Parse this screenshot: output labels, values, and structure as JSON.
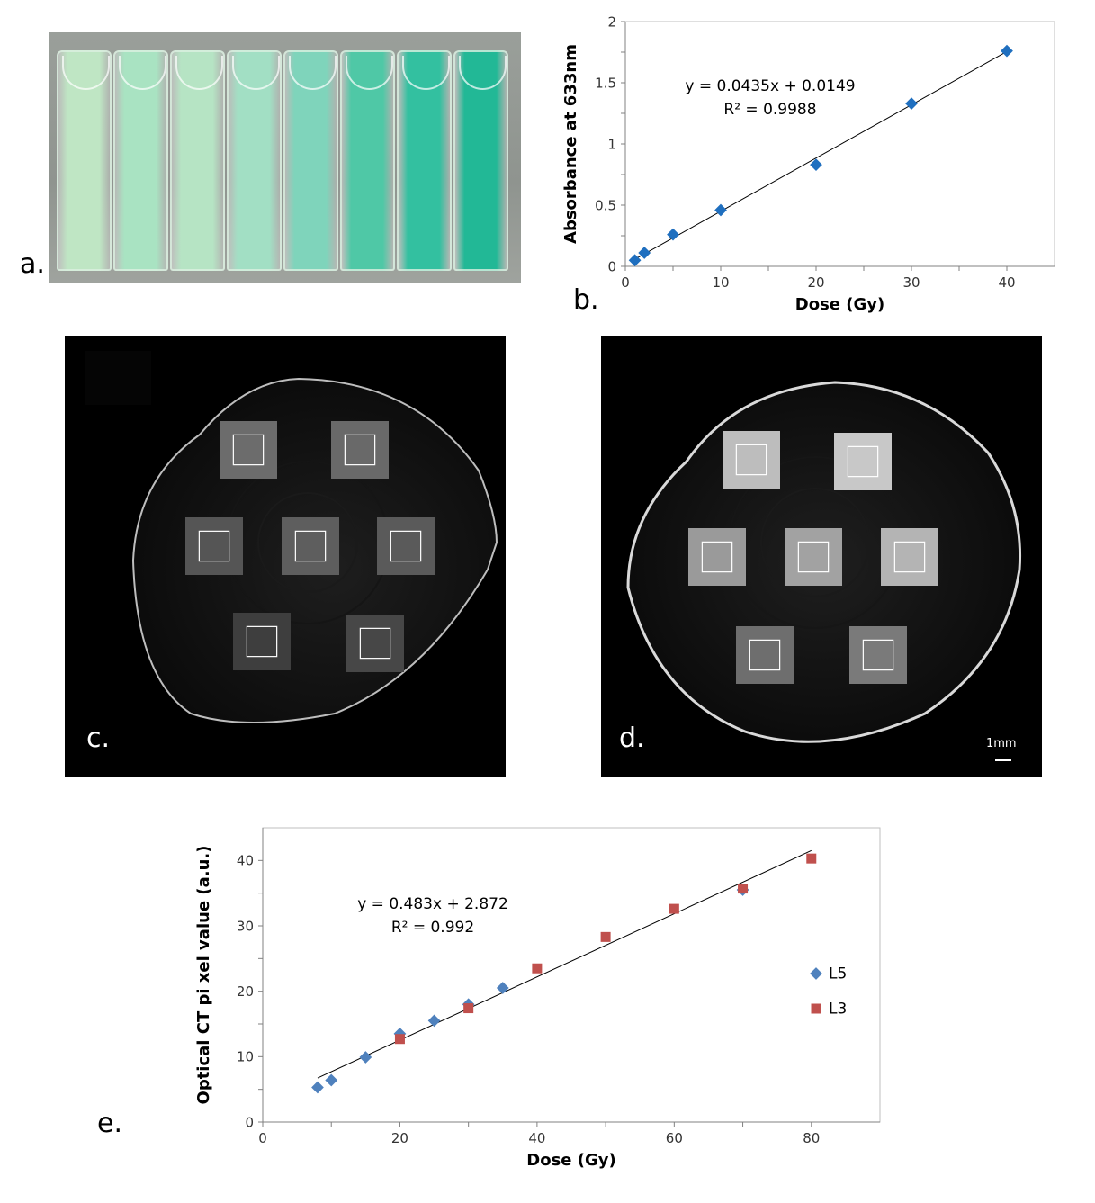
{
  "panels": {
    "a": {
      "label": "a."
    },
    "b": {
      "label": "b."
    },
    "c": {
      "label": "c."
    },
    "d": {
      "label": "d.",
      "scale_bar": "1mm"
    },
    "e": {
      "label": "e."
    }
  },
  "cuvettes": {
    "count": 8,
    "colors": [
      "#bfe6c4",
      "#a9e3c2",
      "#b6e4c4",
      "#a2dfc4",
      "#7fd4bb",
      "#4fc8a6",
      "#33c0a0",
      "#22b896"
    ]
  },
  "chart_data": [
    {
      "id": "b",
      "type": "scatter",
      "xlabel": "Dose (Gy)",
      "ylabel": "Absorbance at 633nm",
      "xlim": [
        0,
        45
      ],
      "ylim": [
        0,
        2
      ],
      "xticks": [
        "0",
        "10",
        "20",
        "30",
        "40"
      ],
      "yticks": [
        "0",
        "0.5",
        "1",
        "1.5",
        "2"
      ],
      "grid": false,
      "marker_color": "#1f6fbf",
      "series": [
        {
          "values": [
            [
              1,
              0.05
            ],
            [
              2,
              0.11
            ],
            [
              5,
              0.26
            ],
            [
              10,
              0.46
            ],
            [
              20,
              0.83
            ],
            [
              30,
              1.33
            ],
            [
              40,
              1.76
            ]
          ]
        }
      ],
      "trendline": {
        "slope": 0.0435,
        "intercept": 0.0149,
        "x_range": [
          1,
          40
        ]
      },
      "annotations": {
        "equation": "y = 0.0435x + 0.0149",
        "r2": "R² = 0.9988"
      }
    },
    {
      "id": "e",
      "type": "scatter",
      "xlabel": "Dose (Gy)",
      "ylabel": "Optical CT pi xel value (a.u.)",
      "xlim": [
        0,
        90
      ],
      "ylim": [
        0,
        45
      ],
      "xticks": [
        "0",
        "20",
        "40",
        "60",
        "80"
      ],
      "yticks": [
        "0",
        "10",
        "20",
        "30",
        "40"
      ],
      "grid": false,
      "legend_position": "right",
      "series": [
        {
          "name": "L5",
          "color": "#4f81bd",
          "marker": "diamond",
          "values": [
            [
              8,
              5.3
            ],
            [
              10,
              6.4
            ],
            [
              15,
              9.9
            ],
            [
              20,
              13.5
            ],
            [
              25,
              15.5
            ],
            [
              30,
              18.0
            ],
            [
              35,
              20.5
            ],
            [
              70,
              35.5
            ]
          ]
        },
        {
          "name": "L3",
          "color": "#c0504d",
          "marker": "square",
          "values": [
            [
              20,
              12.7
            ],
            [
              30,
              17.4
            ],
            [
              40,
              23.5
            ],
            [
              50,
              28.3
            ],
            [
              60,
              32.6
            ],
            [
              70,
              35.7
            ],
            [
              80,
              40.3
            ]
          ]
        }
      ],
      "trendline": {
        "slope": 0.483,
        "intercept": 2.872,
        "x_range": [
          8,
          80
        ]
      },
      "annotations": {
        "equation": "y = 0.483x + 2.872",
        "r2": "R² = 0.992"
      }
    }
  ]
}
